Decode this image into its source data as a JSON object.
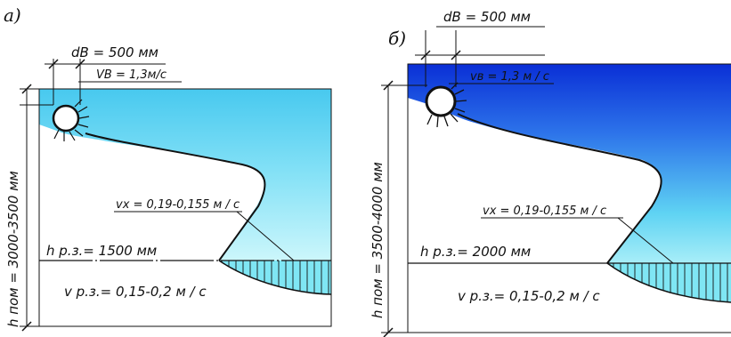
{
  "panel_a": {
    "letter": "а)",
    "dB": "dB  = 500 мм",
    "vB": "VB = 1,3м/с",
    "h_room": "h пом = 3000-3500 мм",
    "vx": "vx = 0,19-0,155  м / с",
    "h_work": "h р.з.= 1500 мм",
    "v_work": "v р.з.= 0,15-0,2 м / с"
  },
  "panel_b": {
    "letter": "б)",
    "dB": "dB  = 500 мм",
    "vB": "vв = 1,3 м / с",
    "h_room": "h пом = 3500-4000 мм",
    "vx": "vx = 0,19-0,155  м / с",
    "h_work": "h р.з.= 2000 мм",
    "v_work": "v р.з.= 0,15-0,2 м / с"
  },
  "colors": {
    "jet_a_top": "#3ec6ee",
    "jet_a_bottom": "#bff4fb",
    "jet_b_top": "#0a2fd6",
    "jet_b_bottom": "#7fe6f6",
    "lines": "#111111"
  }
}
